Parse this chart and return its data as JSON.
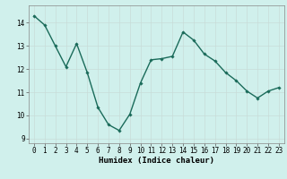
{
  "x": [
    0,
    1,
    2,
    3,
    4,
    5,
    6,
    7,
    8,
    9,
    10,
    11,
    12,
    13,
    14,
    15,
    16,
    17,
    18,
    19,
    20,
    21,
    22,
    23
  ],
  "y": [
    14.3,
    13.9,
    13.0,
    12.1,
    13.1,
    11.85,
    10.35,
    9.6,
    9.35,
    10.05,
    11.4,
    12.4,
    12.45,
    12.55,
    13.6,
    13.25,
    12.65,
    12.35,
    11.85,
    11.5,
    11.05,
    10.75,
    11.05,
    11.2
  ],
  "line_color": "#1a6b5a",
  "marker": "D",
  "marker_size": 1.8,
  "line_width": 1.0,
  "xlabel": "Humidex (Indice chaleur)",
  "xlabel_fontsize": 6.5,
  "bg_color": "#d0f0ec",
  "grid_color": "#c8dcd8",
  "xtick_labels": [
    "0",
    "1",
    "2",
    "3",
    "4",
    "5",
    "6",
    "7",
    "8",
    "9",
    "10",
    "11",
    "12",
    "13",
    "14",
    "15",
    "16",
    "17",
    "18",
    "19",
    "20",
    "21",
    "22",
    "23"
  ],
  "ytick_values": [
    9,
    10,
    11,
    12,
    13,
    14
  ],
  "xlim": [
    -0.5,
    23.5
  ],
  "ylim": [
    8.8,
    14.75
  ],
  "tick_fontsize": 5.5,
  "font_family": "monospace"
}
